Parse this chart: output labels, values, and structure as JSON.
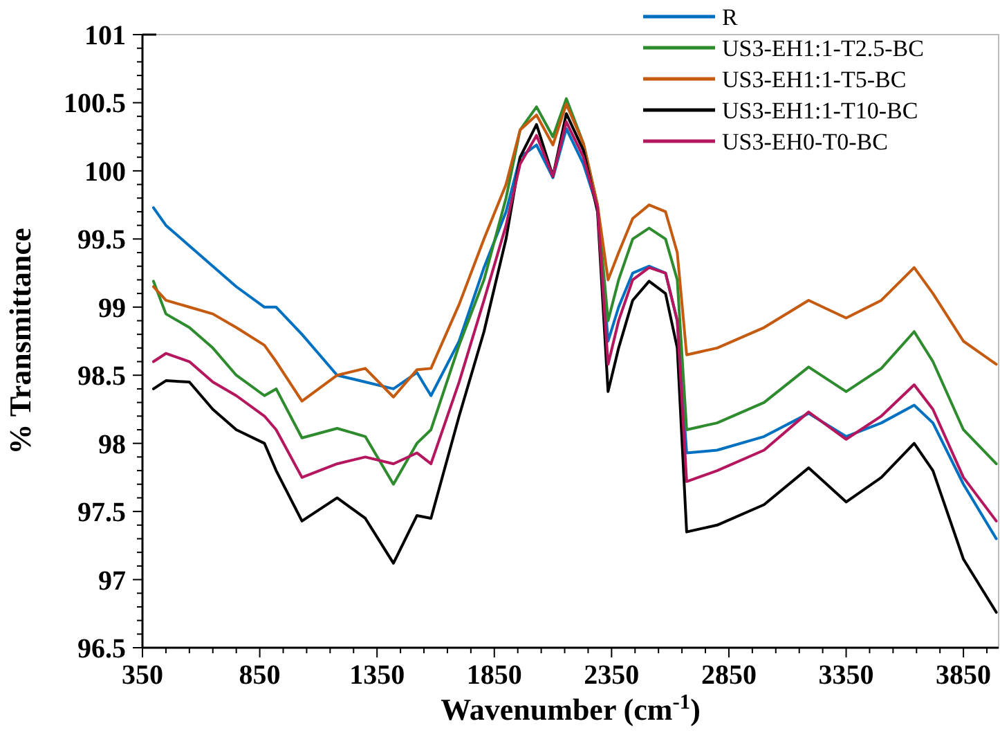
{
  "chart_data": {
    "type": "line",
    "xlabel": "Wavenumber (cm$^{-1}$)",
    "ylabel": "% Transmittance",
    "x": [
      397,
      450,
      550,
      650,
      750,
      870,
      920,
      1030,
      1180,
      1300,
      1420,
      1520,
      1580,
      1700,
      1806,
      1900,
      1960,
      2030,
      2100,
      2157,
      2230,
      2290,
      2335,
      2380,
      2440,
      2510,
      2580,
      2630,
      2670,
      2800,
      3000,
      3190,
      3350,
      3500,
      3640,
      3720,
      3850,
      3990
    ],
    "series": [
      {
        "name": "R",
        "color": "#0070c0",
        "values": [
          99.73,
          99.6,
          99.45,
          99.3,
          99.15,
          99.0,
          99.0,
          98.8,
          98.5,
          98.45,
          98.4,
          98.52,
          98.35,
          98.75,
          99.29,
          99.7,
          100.1,
          100.19,
          99.95,
          100.31,
          100.05,
          99.73,
          98.75,
          99.0,
          99.25,
          99.3,
          99.25,
          98.9,
          97.93,
          97.95,
          98.05,
          98.22,
          98.05,
          98.15,
          98.28,
          98.15,
          97.7,
          97.3
        ]
      },
      {
        "name": "US3-EH1:1-T2.5-BC",
        "color": "#2e8b2e",
        "values": [
          99.19,
          98.95,
          98.85,
          98.7,
          98.5,
          98.35,
          98.4,
          98.04,
          98.11,
          98.05,
          97.7,
          98.0,
          98.1,
          98.72,
          99.2,
          99.8,
          100.3,
          100.47,
          100.25,
          100.53,
          100.2,
          99.75,
          98.9,
          99.2,
          99.5,
          99.58,
          99.5,
          99.2,
          98.1,
          98.15,
          98.3,
          98.56,
          98.38,
          98.55,
          98.82,
          98.6,
          98.1,
          97.85
        ]
      },
      {
        "name": "US3-EH1:1-T5-BC",
        "color": "#c55a11",
        "values": [
          99.15,
          99.05,
          99.0,
          98.95,
          98.85,
          98.72,
          98.6,
          98.31,
          98.5,
          98.55,
          98.34,
          98.54,
          98.55,
          99.02,
          99.5,
          99.9,
          100.3,
          100.41,
          100.19,
          100.49,
          100.2,
          99.75,
          99.2,
          99.4,
          99.65,
          99.75,
          99.7,
          99.4,
          98.65,
          98.7,
          98.85,
          99.05,
          98.92,
          99.05,
          99.29,
          99.1,
          98.75,
          98.58
        ]
      },
      {
        "name": "US3-EH1:1-T10-BC",
        "color": "#000000",
        "values": [
          98.4,
          98.46,
          98.45,
          98.25,
          98.1,
          98.0,
          97.8,
          97.43,
          97.6,
          97.45,
          97.12,
          97.47,
          97.45,
          98.2,
          98.82,
          99.5,
          100.1,
          100.34,
          99.96,
          100.42,
          100.15,
          99.7,
          98.38,
          98.7,
          99.05,
          99.19,
          99.1,
          98.7,
          97.35,
          97.4,
          97.55,
          97.82,
          97.57,
          97.75,
          98.0,
          97.8,
          97.15,
          96.76
        ]
      },
      {
        "name": "US3-EH0-T0-BC",
        "color": "#b5175e",
        "values": [
          98.6,
          98.66,
          98.6,
          98.45,
          98.35,
          98.2,
          98.1,
          97.75,
          97.85,
          97.9,
          97.85,
          97.93,
          97.85,
          98.45,
          99.05,
          99.6,
          100.05,
          100.26,
          99.96,
          100.36,
          100.1,
          99.73,
          98.58,
          98.9,
          99.2,
          99.29,
          99.25,
          98.9,
          97.72,
          97.8,
          97.95,
          98.23,
          98.03,
          98.2,
          98.43,
          98.25,
          97.75,
          97.43
        ]
      }
    ],
    "xlim": [
      350,
      4000
    ],
    "xticks": [
      350,
      {
        "value": 450,
        "label": null
      },
      {
        "value": 550,
        "label": null
      },
      {
        "value": 650,
        "label": null
      },
      {
        "value": 750,
        "label": null
      },
      850,
      {
        "value": 950,
        "label": null
      },
      {
        "value": 1050,
        "label": null
      },
      {
        "value": 1150,
        "label": null
      },
      {
        "value": 1250,
        "label": null
      },
      1350,
      {
        "value": 1450,
        "label": null
      },
      {
        "value": 1550,
        "label": null
      },
      {
        "value": 1650,
        "label": null
      },
      {
        "value": 1750,
        "label": null
      },
      1850,
      {
        "value": 1950,
        "label": null
      },
      {
        "value": 2050,
        "label": null
      },
      {
        "value": 2150,
        "label": null
      },
      {
        "value": 2250,
        "label": null
      },
      2350,
      {
        "value": 2450,
        "label": null
      },
      {
        "value": 2550,
        "label": null
      },
      {
        "value": 2650,
        "label": null
      },
      {
        "value": 2750,
        "label": null
      },
      2850,
      {
        "value": 2950,
        "label": null
      },
      {
        "value": 3050,
        "label": null
      },
      {
        "value": 3150,
        "label": null
      },
      {
        "value": 3250,
        "label": null
      },
      3350,
      {
        "value": 3450,
        "label": null
      },
      {
        "value": 3550,
        "label": null
      },
      {
        "value": 3650,
        "label": null
      },
      {
        "value": 3750,
        "label": null
      },
      3850,
      {
        "value": 3950,
        "label": null
      }
    ],
    "ylim": [
      96.5,
      101
    ],
    "yticks": [
      96.5,
      {
        "value": 96.6,
        "label": null
      },
      {
        "value": 96.7,
        "label": null
      },
      {
        "value": 96.8,
        "label": null
      },
      {
        "value": 96.9,
        "label": null
      },
      97,
      {
        "value": 97.1,
        "label": null
      },
      {
        "value": 97.2,
        "label": null
      },
      {
        "value": 97.3,
        "label": null
      },
      {
        "value": 97.4,
        "label": null
      },
      97.5,
      {
        "value": 97.6,
        "label": null
      },
      {
        "value": 97.7,
        "label": null
      },
      {
        "value": 97.8,
        "label": null
      },
      {
        "value": 97.9,
        "label": null
      },
      98,
      {
        "value": 98.1,
        "label": null
      },
      {
        "value": 98.2,
        "label": null
      },
      {
        "value": 98.3,
        "label": null
      },
      {
        "value": 98.4,
        "label": null
      },
      98.5,
      {
        "value": 98.6,
        "label": null
      },
      {
        "value": 98.7,
        "label": null
      },
      {
        "value": 98.8,
        "label": null
      },
      {
        "value": 98.9,
        "label": null
      },
      99,
      {
        "value": 99.1,
        "label": null
      },
      {
        "value": 99.2,
        "label": null
      },
      {
        "value": 99.3,
        "label": null
      },
      {
        "value": 99.4,
        "label": null
      },
      99.5,
      {
        "value": 99.6,
        "label": null
      },
      {
        "value": 99.7,
        "label": null
      },
      {
        "value": 99.8,
        "label": null
      },
      {
        "value": 99.9,
        "label": null
      },
      100,
      {
        "value": 100.1,
        "label": null
      },
      {
        "value": 100.2,
        "label": null
      },
      {
        "value": 100.3,
        "label": null
      },
      {
        "value": 100.4,
        "label": null
      },
      100.5,
      {
        "value": 100.6,
        "label": null
      },
      {
        "value": 100.7,
        "label": null
      },
      {
        "value": 100.8,
        "label": null
      },
      {
        "value": 100.9,
        "label": null
      },
      101
    ],
    "grid": false,
    "legend": "top right",
    "marker": "none",
    "line_style": "solid"
  }
}
